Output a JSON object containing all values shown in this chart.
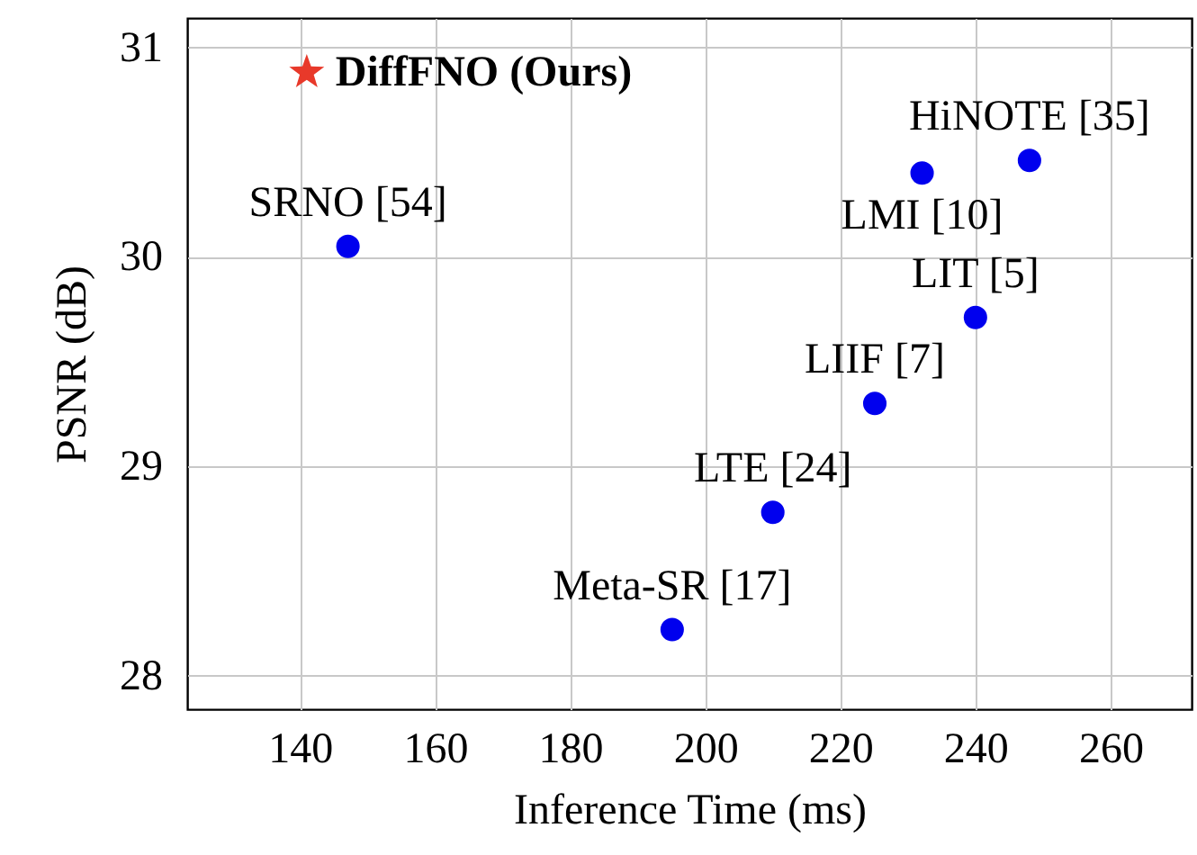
{
  "chart_data": {
    "type": "scatter",
    "xlabel": "Inference Time (ms)",
    "ylabel": "PSNR (dB)",
    "xlim": [
      123.3,
      272
    ],
    "xticks": [
      140,
      160,
      180,
      200,
      220,
      240,
      260
    ],
    "ylim": [
      27.84,
      31.14
    ],
    "yticks": [
      28,
      29,
      30,
      31
    ],
    "grid": true,
    "series": [
      {
        "name": "DiffFNO (Ours)",
        "color": "#e8392a",
        "marker": "star",
        "x": [
          141
        ],
        "values": [
          30.88
        ]
      },
      {
        "color": "#0000ee",
        "marker": "circle",
        "x": [
          147.1,
          248.0,
          232.1,
          240.0,
          225.1,
          210.0,
          195.1
        ],
        "values": [
          30.05,
          30.46,
          30.4,
          29.71,
          29.3,
          28.78,
          28.22
        ]
      }
    ],
    "annotations": [
      {
        "text": "SRNO [54]",
        "x": 147.1,
        "y": 30.05
      },
      {
        "text": "HiNOTE [35]",
        "x": 248.0,
        "y": 30.46
      },
      {
        "text": "LMI [10]",
        "x": 232.1,
        "y": 30.4
      },
      {
        "text": "LIT [5]",
        "x": 240.0,
        "y": 29.71
      },
      {
        "text": "LIIF [7]",
        "x": 225.1,
        "y": 29.3
      },
      {
        "text": "LTE [24]",
        "x": 210.0,
        "y": 28.78
      },
      {
        "text": "Meta-SR [17]",
        "x": 195.1,
        "y": 28.22
      }
    ]
  }
}
